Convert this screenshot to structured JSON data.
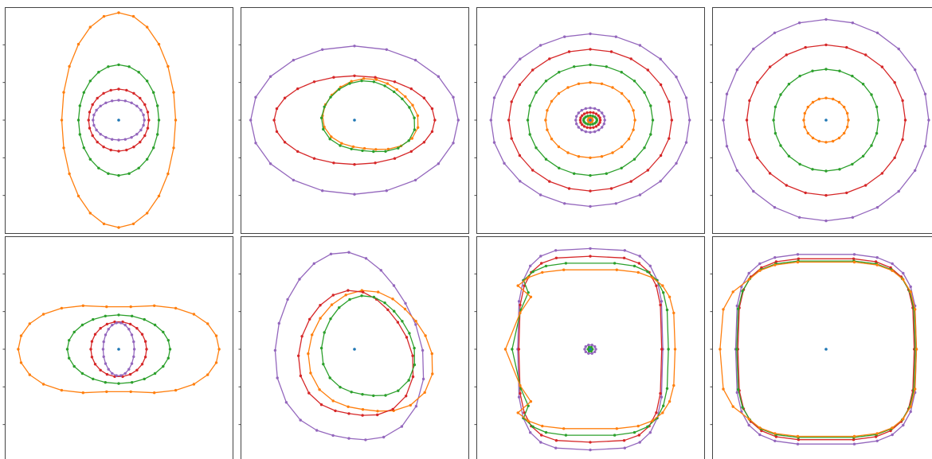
{
  "colors": {
    "center": "#1f77b4",
    "orange": "#ff7f0e",
    "green": "#2ca02c",
    "red": "#d62728",
    "purple": "#9467bd",
    "frame": "#444444",
    "background": "#ffffff"
  },
  "chart_data": [
    {
      "type": "scatter",
      "panel": "row-1-col-1",
      "xlim": [
        -1,
        1
      ],
      "ylim": [
        -1,
        1
      ],
      "center": [
        0,
        0
      ],
      "series": [
        {
          "color": "orange",
          "shape": "ellipse",
          "rx": 0.51,
          "ry": 0.97,
          "points": 24
        },
        {
          "color": "green",
          "shape": "ellipse",
          "rx": 0.36,
          "ry": 0.5,
          "points": 24
        },
        {
          "color": "red",
          "shape": "ellipse",
          "rx": 0.27,
          "ry": 0.28,
          "points": 24
        },
        {
          "color": "purple",
          "shape": "ellipse",
          "rx": 0.23,
          "ry": 0.18,
          "points": 24
        }
      ]
    },
    {
      "type": "scatter",
      "panel": "row-1-col-2",
      "xlim": [
        -1,
        1
      ],
      "ylim": [
        -1,
        1
      ],
      "center": [
        0,
        0
      ],
      "series": [
        {
          "color": "purple",
          "shape": "ellipse",
          "rx": 0.93,
          "ry": 0.67,
          "points": 20
        },
        {
          "color": "red",
          "shape": "ellipse",
          "rx": 0.72,
          "ry": 0.4,
          "points": 24
        },
        {
          "color": "orange",
          "shape": "blob",
          "cx": 0.14,
          "cy": 0.04,
          "rx": 0.4,
          "ry": 0.34,
          "points": 22
        },
        {
          "color": "green",
          "shape": "blob",
          "cx": 0.12,
          "cy": 0.02,
          "rx": 0.39,
          "ry": 0.34,
          "points": 22
        }
      ]
    },
    {
      "type": "scatter",
      "panel": "row-1-col-3",
      "xlim": [
        -1,
        1
      ],
      "ylim": [
        -1,
        1
      ],
      "center": [
        0,
        0
      ],
      "series": [
        {
          "color": "purple",
          "shape": "ellipse",
          "rx": 0.89,
          "ry": 0.78,
          "points": 24
        },
        {
          "color": "red",
          "shape": "ellipse",
          "rx": 0.73,
          "ry": 0.64,
          "points": 24
        },
        {
          "color": "green",
          "shape": "ellipse",
          "rx": 0.56,
          "ry": 0.5,
          "points": 24
        },
        {
          "color": "orange",
          "shape": "ellipse",
          "rx": 0.4,
          "ry": 0.34,
          "points": 24
        },
        {
          "color": "purple",
          "shape": "ellipse",
          "rx": 0.13,
          "ry": 0.11,
          "points": 20
        },
        {
          "color": "red",
          "shape": "ellipse",
          "rx": 0.09,
          "ry": 0.07,
          "points": 20
        },
        {
          "color": "green",
          "shape": "ellipse",
          "rx": 0.06,
          "ry": 0.04,
          "points": 16
        },
        {
          "color": "orange",
          "shape": "ellipse",
          "rx": 0.02,
          "ry": 0.02,
          "points": 8
        }
      ]
    },
    {
      "type": "scatter",
      "panel": "row-1-col-4",
      "xlim": [
        -1,
        1
      ],
      "ylim": [
        -1,
        1
      ],
      "center": [
        0,
        0
      ],
      "series": [
        {
          "color": "purple",
          "shape": "ellipse",
          "rx": 0.92,
          "ry": 0.91,
          "points": 24
        },
        {
          "color": "red",
          "shape": "ellipse",
          "rx": 0.71,
          "ry": 0.68,
          "points": 24
        },
        {
          "color": "green",
          "shape": "ellipse",
          "rx": 0.47,
          "ry": 0.46,
          "points": 24
        },
        {
          "color": "orange",
          "shape": "ellipse",
          "rx": 0.2,
          "ry": 0.2,
          "points": 20
        }
      ]
    },
    {
      "type": "scatter",
      "panel": "row-2-col-1",
      "xlim": [
        -1,
        1
      ],
      "ylim": [
        -1,
        1
      ],
      "center": [
        0,
        0
      ],
      "series": [
        {
          "color": "orange",
          "shape": "peanut",
          "rx": 0.9,
          "ry": 0.54,
          "dip": 0.17,
          "points": 26
        },
        {
          "color": "green",
          "shape": "ellipse",
          "rx": 0.46,
          "ry": 0.31,
          "points": 24
        },
        {
          "color": "red",
          "shape": "ellipse",
          "rx": 0.25,
          "ry": 0.25,
          "points": 22
        },
        {
          "color": "purple",
          "shape": "ellipse",
          "rx": 0.14,
          "ry": 0.24,
          "points": 22
        }
      ]
    },
    {
      "type": "scatter",
      "panel": "row-2-col-2",
      "xlim": [
        -1,
        1
      ],
      "ylim": [
        -1,
        1
      ],
      "center": [
        0,
        0
      ],
      "series": [
        {
          "color": "purple",
          "shape": "blob",
          "cx": -0.05,
          "cy": -0.01,
          "rx": 0.62,
          "ry": 0.9,
          "points": 24
        },
        {
          "color": "orange",
          "shape": "blob",
          "cx": 0.14,
          "cy": -0.04,
          "rx": 0.52,
          "ry": 0.58,
          "points": 22
        },
        {
          "color": "red",
          "shape": "blob",
          "cx": 0.01,
          "cy": -0.06,
          "rx": 0.48,
          "ry": 0.6,
          "points": 22
        },
        {
          "color": "green",
          "shape": "blob",
          "cx": 0.12,
          "cy": 0.01,
          "rx": 0.39,
          "ry": 0.48,
          "points": 22
        }
      ]
    },
    {
      "type": "scatter",
      "panel": "row-2-col-3",
      "xlim": [
        -1,
        1
      ],
      "ylim": [
        -1,
        1
      ],
      "center": [
        0,
        0
      ],
      "series": [
        {
          "color": "purple",
          "shape": "squircle",
          "rx": 0.65,
          "ry": 0.91,
          "points": 24
        },
        {
          "color": "red",
          "shape": "squircle",
          "rx": 0.64,
          "ry": 0.84,
          "points": 24
        },
        {
          "color": "green",
          "shape": "squircle",
          "rx": 0.7,
          "ry": 0.78,
          "notch": 0.1,
          "points": 26
        },
        {
          "color": "orange",
          "shape": "squircle",
          "rx": 0.76,
          "ry": 0.72,
          "notch": 0.18,
          "points": 26
        },
        {
          "color": "purple",
          "shape": "ellipse",
          "rx": 0.05,
          "ry": 0.04,
          "points": 10
        },
        {
          "color": "green",
          "shape": "ellipse",
          "rx": 0.02,
          "ry": 0.02,
          "points": 6
        }
      ]
    },
    {
      "type": "scatter",
      "panel": "row-2-col-4",
      "xlim": [
        -1,
        1
      ],
      "ylim": [
        -1,
        1
      ],
      "center": [
        0,
        0
      ],
      "series": [
        {
          "color": "purple",
          "shape": "squircle",
          "rx": 0.81,
          "ry": 0.86,
          "points": 26
        },
        {
          "color": "red",
          "shape": "squircle",
          "rx": 0.79,
          "ry": 0.82,
          "points": 26
        },
        {
          "color": "green",
          "shape": "squircle",
          "rx": 0.8,
          "ry": 0.8,
          "points": 26
        },
        {
          "color": "orange",
          "shape": "squircle",
          "rx": 0.81,
          "ry": 0.79,
          "bulge": 0.14,
          "points": 26
        }
      ]
    }
  ]
}
